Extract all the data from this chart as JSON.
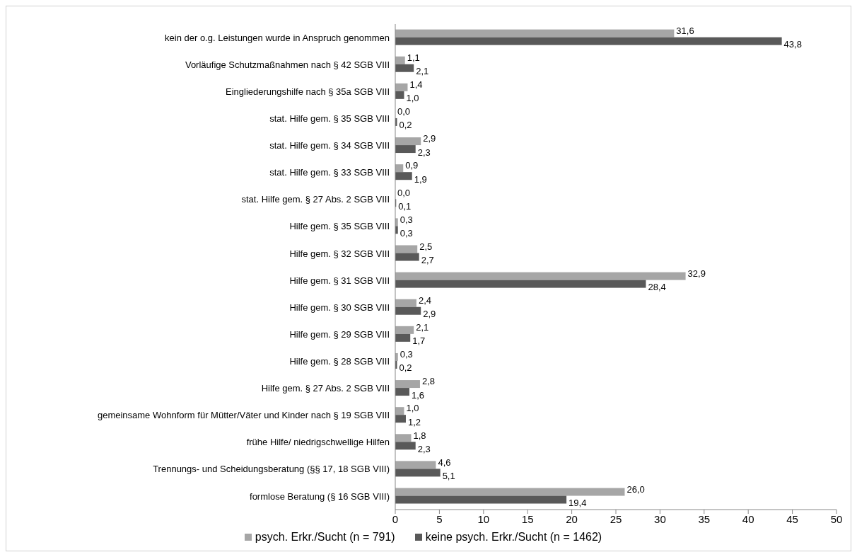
{
  "chart_data": {
    "type": "bar",
    "orientation": "horizontal",
    "categories": [
      "kein der o.g. Leistungen wurde in Anspruch genommen",
      "Vorläufige Schutzmaßnahmen nach § 42 SGB VIII",
      "Eingliederungshilfe nach § 35a SGB VIII",
      "stat. Hilfe gem. § 35 SGB VIII",
      "stat. Hilfe gem. § 34 SGB VIII",
      "stat. Hilfe gem. § 33 SGB VIII",
      "stat. Hilfe gem. § 27 Abs. 2 SGB VIII",
      "Hilfe gem. § 35 SGB VIII",
      "Hilfe gem. § 32 SGB VIII",
      "Hilfe gem. § 31 SGB VIII",
      "Hilfe gem. § 30 SGB VIII",
      "Hilfe gem. § 29 SGB VIII",
      "Hilfe gem. § 28 SGB VIII",
      "Hilfe gem. § 27 Abs. 2 SGB VIII",
      "gemeinsame Wohnform für Mütter/Väter und Kinder nach § 19 SGB VIII",
      "frühe Hilfe/ niedrigschwellige Hilfen",
      "Trennungs- und Scheidungsberatung (§§ 17, 18 SGB VIII)",
      "formlose Beratung (§ 16 SGB VIII)"
    ],
    "series": [
      {
        "name": "psych. Erkr./Sucht (n = 791)",
        "color": "#a6a6a6",
        "values": [
          31.6,
          1.1,
          1.4,
          0.0,
          2.9,
          0.9,
          0.0,
          0.3,
          2.5,
          32.9,
          2.4,
          2.1,
          0.3,
          2.8,
          1.0,
          1.8,
          4.6,
          26.0
        ],
        "value_labels": [
          "31,6",
          "1,1",
          "1,4",
          "0,0",
          "2,9",
          "0,9",
          "0,0",
          "0,3",
          "2,5",
          "32,9",
          "2,4",
          "2,1",
          "0,3",
          "2,8",
          "1,0",
          "1,8",
          "4,6",
          "26,0"
        ]
      },
      {
        "name": "keine psych. Erkr./Sucht (n = 1462)",
        "color": "#595959",
        "values": [
          43.8,
          2.1,
          1.0,
          0.2,
          2.3,
          1.9,
          0.1,
          0.3,
          2.7,
          28.4,
          2.9,
          1.7,
          0.2,
          1.6,
          1.2,
          2.3,
          5.1,
          19.4
        ],
        "value_labels": [
          "43,8",
          "2,1",
          "1,0",
          "0,2",
          "2,3",
          "1,9",
          "0,1",
          "0,3",
          "2,7",
          "28,4",
          "2,9",
          "1,7",
          "0,2",
          "1,6",
          "1,2",
          "2,3",
          "5,1",
          "19,4"
        ]
      }
    ],
    "xlim": [
      0,
      50
    ],
    "xticks": [
      0,
      5,
      10,
      15,
      20,
      25,
      30,
      35,
      40,
      45,
      50
    ],
    "grid": false,
    "legend": "bottom"
  }
}
